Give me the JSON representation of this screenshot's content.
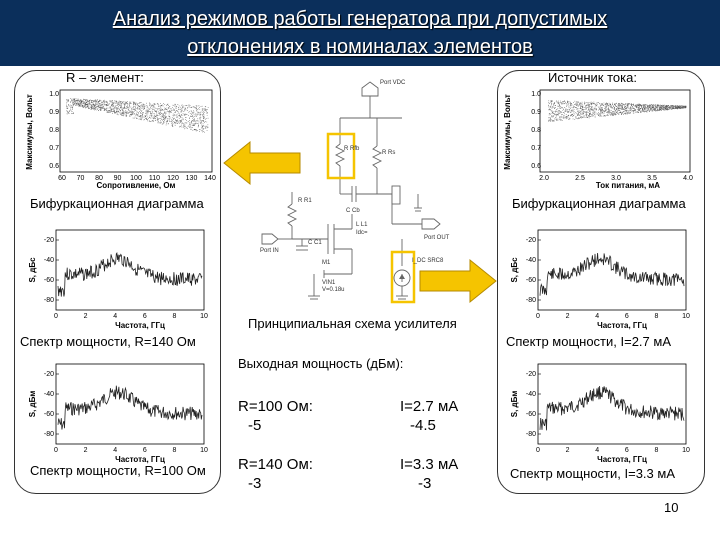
{
  "header": {
    "line1": "Анализ режимов работы генератора при допустимых",
    "line2": "отклонениях в номиналах элементов",
    "bg_color": "#0b2f5b"
  },
  "left_panel": {
    "heading": "R – элемент:",
    "bif_label": "Бифуркационная диаграмма",
    "bif_xlabel": "Сопротивление, Ом",
    "bif_ylabel": "Максимумы, Вольт",
    "bif_xticks": [
      "60",
      "70",
      "80",
      "90",
      "100",
      "110",
      "120",
      "130",
      "140"
    ],
    "bif_yticks": [
      "1.0",
      "0.9",
      "0.8",
      "0.7",
      "0.6"
    ],
    "spec1_label": "Спектр мощности, R=140 Ом",
    "spec2_label": "Спектр мощности, R=100 Ом"
  },
  "right_panel": {
    "heading": "Источник тока:",
    "bif_label": "Бифуркационная диаграмма",
    "bif_xlabel": "Ток питания, мА",
    "bif_ylabel": "Максимумы, Вольт",
    "bif_xticks": [
      "2.0",
      "2.5",
      "3.0",
      "3.5",
      "4.0"
    ],
    "bif_yticks": [
      "1.0",
      "0.9",
      "0.8",
      "0.7",
      "0.6"
    ],
    "spec1_label": "Спектр мощности, I=2.7 мА",
    "spec2_label": "Спектр мощности, I=3.3 мА"
  },
  "spectrum_axes": {
    "ylabel_a": "S, дБс",
    "ylabel_b": "S, дБм",
    "xlabel": "Частота, ГГц",
    "yticks": [
      "-20",
      "-40",
      "-60",
      "-80"
    ],
    "xticks": [
      "0",
      "2",
      "4",
      "6",
      "8",
      "10"
    ]
  },
  "center": {
    "schematic_caption": "Принципиальная схема усилителя",
    "output_title": "Выходная мощность (дБм):",
    "r100_label": "R=100 Ом:",
    "r100_value": "-5",
    "i27_label": "I=2.7 мА",
    "i27_value": "-4.5",
    "r140_label": "R=140 Ом:",
    "r140_value": "-3",
    "i33_label": "I=3.3 мА",
    "i33_value": "-3"
  },
  "schematic_labels": {
    "port_vdc": "Port VDC",
    "port_in": "Port IN",
    "port_out": "Port OUT",
    "r_fb": "R Rfb",
    "r_rs": "R Rs",
    "r_r1": "R R1",
    "c_cb": "C Cb",
    "c_c1": "C C1",
    "l_l1": "L L1",
    "ldc": "I_DC SRC8",
    "idc_value": "Idc=",
    "vin": "VIN1",
    "vval": "V=0.18u",
    "m1": "M1"
  },
  "page_number": "10",
  "colors": {
    "highlight": "#f5c400",
    "arrow": "#f5c400",
    "arrow_border": "#b58a00"
  }
}
